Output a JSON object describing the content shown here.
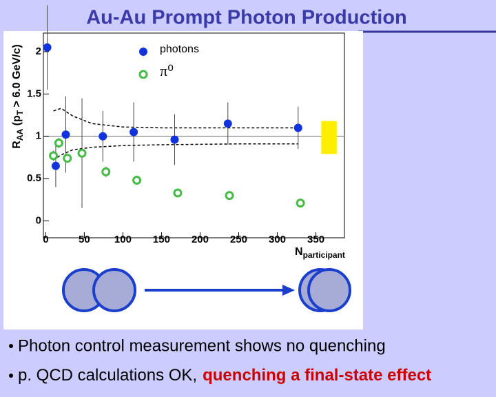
{
  "title": "Au-Au Prompt Photon Production",
  "bullets": [
    {
      "text": "Photon control measurement shows no quenching"
    },
    {
      "text": "p. QCD calculations OK,",
      "highlight": "quenching a final-state effect"
    }
  ],
  "chart_data": {
    "type": "scatter",
    "x_label": [
      "N",
      "participant"
    ],
    "y_label": [
      "R",
      "AA",
      " (p",
      "T",
      " > 6.0 GeV/c)"
    ],
    "xlim": [
      -3,
      387
    ],
    "ylim": [
      -0.2,
      2.22
    ],
    "xticks": [
      0,
      50,
      100,
      150,
      200,
      250,
      300,
      350
    ],
    "yticks": [
      0,
      0.5,
      1,
      1.5,
      2
    ],
    "reference_line": 1,
    "series": [
      {
        "name": "photons",
        "color": "#1133dd",
        "marker": "filled",
        "x": [
          2,
          13,
          26,
          74,
          114,
          167,
          236,
          327
        ],
        "values": [
          2.05,
          0.65,
          1.02,
          1.0,
          1.05,
          0.96,
          1.15,
          1.1
        ],
        "errors": [
          0.5,
          0.25,
          0.45,
          0.3,
          0.35,
          0.3,
          0.25,
          0.25
        ]
      },
      {
        "name": "π⁰",
        "color": "#44bb44",
        "marker": "open",
        "x": [
          10,
          17,
          28,
          47,
          78,
          118,
          171,
          238,
          330
        ],
        "values": [
          0.77,
          0.92,
          0.74,
          0.8,
          0.58,
          0.48,
          0.33,
          0.3,
          0.21
        ],
        "errors": [
          0.06,
          0.06,
          0.05,
          0.65,
          0.06,
          0.05,
          0.05,
          0.05,
          0.05
        ]
      }
    ],
    "bands": [
      {
        "x": [
          10,
          20,
          35,
          60,
          100,
          150,
          250,
          327
        ],
        "values": [
          1.3,
          1.33,
          1.24,
          1.15,
          1.11,
          1.1,
          1.1,
          1.1
        ]
      },
      {
        "x": [
          10,
          20,
          35,
          60,
          100,
          150,
          250,
          327
        ],
        "values": [
          0.72,
          0.78,
          0.84,
          0.87,
          0.89,
          0.9,
          0.91,
          0.91
        ]
      }
    ],
    "norm_box": {
      "x": [
        357,
        377
      ],
      "y": [
        0.79,
        1.18
      ],
      "color": "#ffee00"
    }
  }
}
